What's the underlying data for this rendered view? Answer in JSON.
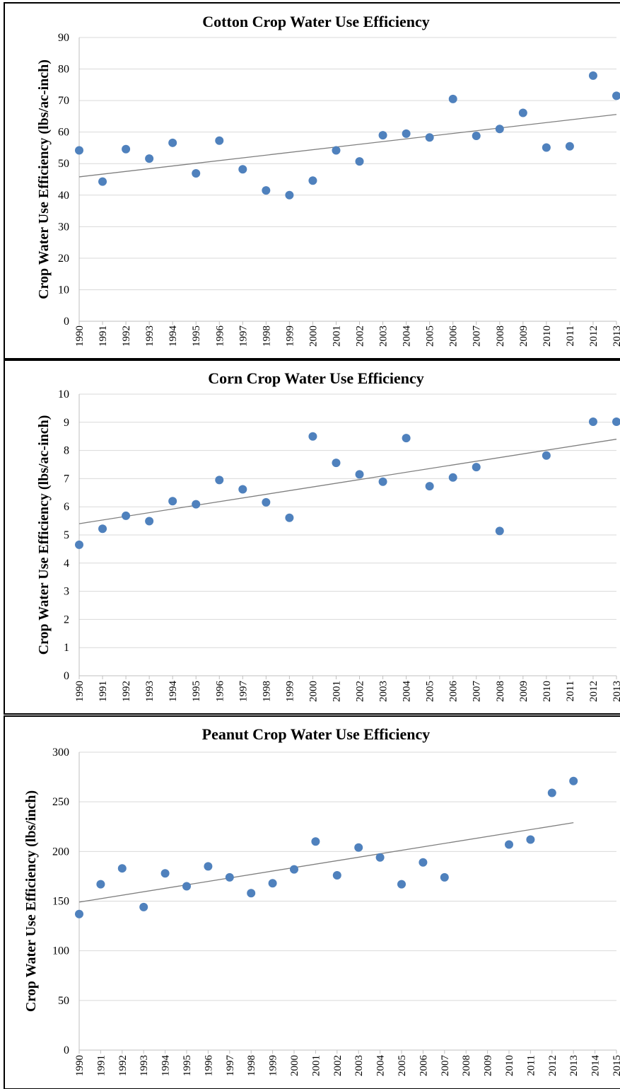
{
  "chart_data": [
    {
      "type": "scatter",
      "title": "Cotton Crop Water Use Efficiency",
      "ylabel": "Crop Water Use Efficiency (lbs/ac-inch)",
      "xlabel": "",
      "ylim": [
        0,
        90
      ],
      "yticks": [
        0,
        10,
        20,
        30,
        40,
        50,
        60,
        70,
        80,
        90
      ],
      "categories": [
        "1990",
        "1991",
        "1992",
        "1993",
        "1994",
        "1995",
        "1996",
        "1997",
        "1998",
        "1999",
        "2000",
        "2001",
        "2002",
        "2003",
        "2004",
        "2005",
        "2006",
        "2007",
        "2008",
        "2009",
        "2010",
        "2011",
        "2012",
        "2013"
      ],
      "series": [
        {
          "values": [
            54.2,
            44.3,
            54.6,
            51.6,
            56.6,
            46.9,
            57.3,
            48.2,
            41.5,
            40.0,
            44.6,
            54.2,
            50.7,
            59.0,
            59.5,
            58.3,
            70.5,
            58.8,
            61.0,
            66.1,
            55.1,
            55.5,
            77.9,
            71.5
          ]
        }
      ],
      "trendline": {
        "start": 45.8,
        "end": 65.6
      },
      "grid": true,
      "color": "#4f81bd"
    },
    {
      "type": "scatter",
      "title": "Corn Crop Water Use Efficiency",
      "ylabel": "Crop Water Use Efficiency (lbs/ac-inch)",
      "xlabel": "",
      "ylim": [
        0,
        10
      ],
      "yticks": [
        0,
        1,
        2,
        3,
        4,
        5,
        6,
        7,
        8,
        9,
        10
      ],
      "categories": [
        "1990",
        "1991",
        "1992",
        "1993",
        "1994",
        "1995",
        "1996",
        "1997",
        "1998",
        "1999",
        "2000",
        "2001",
        "2002",
        "2003",
        "2004",
        "2005",
        "2006",
        "2007",
        "2008",
        "2009",
        "2010",
        "2011",
        "2012",
        "2013"
      ],
      "series": [
        {
          "values": [
            4.65,
            5.22,
            5.68,
            5.49,
            6.2,
            6.09,
            6.95,
            6.62,
            6.16,
            5.61,
            8.5,
            7.56,
            7.15,
            6.89,
            8.44,
            6.73,
            7.04,
            7.41,
            5.14,
            null,
            7.82,
            null,
            9.02,
            9.02
          ]
        }
      ],
      "trendline": {
        "start": 5.4,
        "end": 8.4
      },
      "grid": true,
      "color": "#4f81bd"
    },
    {
      "type": "scatter",
      "title": "Peanut Crop Water Use Efficiency",
      "ylabel": "Crop Water Use Efficiency (lbs/inch)",
      "xlabel": "",
      "ylim": [
        0,
        300
      ],
      "yticks": [
        0,
        50,
        100,
        150,
        200,
        250,
        300
      ],
      "categories": [
        "1990",
        "1991",
        "1992",
        "1993",
        "1994",
        "1995",
        "1996",
        "1997",
        "1998",
        "1999",
        "2000",
        "2001",
        "2002",
        "2003",
        "2004",
        "2005",
        "2006",
        "2007",
        "2008",
        "2009",
        "2010",
        "2011",
        "2012",
        "2013",
        "2014",
        "2015"
      ],
      "series": [
        {
          "values": [
            137,
            167,
            183,
            144,
            178,
            165,
            185,
            174,
            158,
            168,
            182,
            210,
            176,
            204,
            194,
            167,
            189,
            174,
            null,
            null,
            207,
            212,
            259,
            271,
            null,
            null
          ]
        }
      ],
      "trendline": {
        "start": 149,
        "end": 229,
        "end_category": "2013"
      },
      "grid": true,
      "color": "#4f81bd"
    }
  ]
}
